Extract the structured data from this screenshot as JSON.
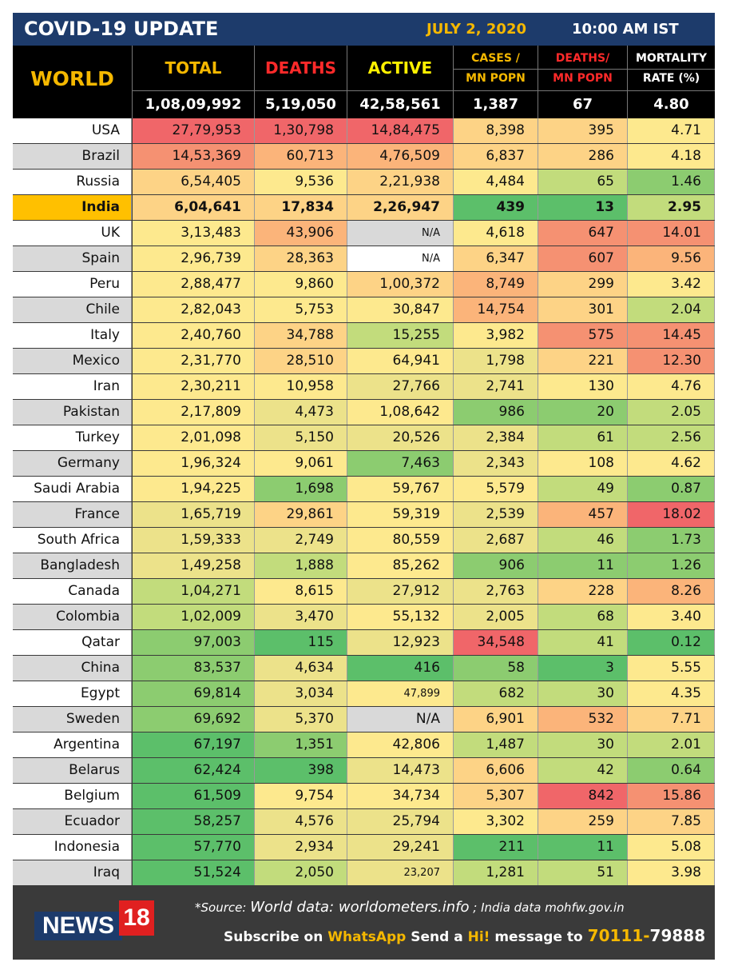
{
  "header": {
    "title": "COVID-19 UPDATE",
    "date": "JULY 2, 2020",
    "time": "10:00 AM IST"
  },
  "columns": {
    "world": "WORLD",
    "total": "TOTAL",
    "deaths": "DEATHS",
    "active": "ACTIVE",
    "cases_mn_1": "CASES /",
    "cases_mn_2": "MN POPN",
    "deaths_mn_1": "DEATHS/",
    "deaths_mn_2": "MN POPN",
    "mortality_1": "MORTALITY",
    "mortality_2": "RATE (%)"
  },
  "world": {
    "total": "1,08,09,992",
    "deaths": "5,19,050",
    "active": "42,58,561",
    "cases_mn": "1,387",
    "deaths_mn": "67",
    "mortality": "4.80"
  },
  "rows": [
    {
      "country": "USA",
      "total": "27,79,953",
      "deaths": "1,30,798",
      "active": "14,84,475",
      "cases_mn": "8,398",
      "deaths_mn": "395",
      "mortality": "4.71"
    },
    {
      "country": "Brazil",
      "total": "14,53,369",
      "deaths": "60,713",
      "active": "4,76,509",
      "cases_mn": "6,837",
      "deaths_mn": "286",
      "mortality": "4.18"
    },
    {
      "country": "Russia",
      "total": "6,54,405",
      "deaths": "9,536",
      "active": "2,21,938",
      "cases_mn": "4,484",
      "deaths_mn": "65",
      "mortality": "1.46"
    },
    {
      "country": "India",
      "total": "6,04,641",
      "deaths": "17,834",
      "active": "2,26,947",
      "cases_mn": "439",
      "deaths_mn": "13",
      "mortality": "2.95"
    },
    {
      "country": "UK",
      "total": "3,13,483",
      "deaths": "43,906",
      "active": "N/A",
      "cases_mn": "4,618",
      "deaths_mn": "647",
      "mortality": "14.01"
    },
    {
      "country": "Spain",
      "total": "2,96,739",
      "deaths": "28,363",
      "active": "N/A",
      "cases_mn": "6,347",
      "deaths_mn": "607",
      "mortality": "9.56"
    },
    {
      "country": "Peru",
      "total": "2,88,477",
      "deaths": "9,860",
      "active": "1,00,372",
      "cases_mn": "8,749",
      "deaths_mn": "299",
      "mortality": "3.42"
    },
    {
      "country": "Chile",
      "total": "2,82,043",
      "deaths": "5,753",
      "active": "30,847",
      "cases_mn": "14,754",
      "deaths_mn": "301",
      "mortality": "2.04"
    },
    {
      "country": "Italy",
      "total": "2,40,760",
      "deaths": "34,788",
      "active": "15,255",
      "cases_mn": "3,982",
      "deaths_mn": "575",
      "mortality": "14.45"
    },
    {
      "country": "Mexico",
      "total": "2,31,770",
      "deaths": "28,510",
      "active": "64,941",
      "cases_mn": "1,798",
      "deaths_mn": "221",
      "mortality": "12.30"
    },
    {
      "country": "Iran",
      "total": "2,30,211",
      "deaths": "10,958",
      "active": "27,766",
      "cases_mn": "2,741",
      "deaths_mn": "130",
      "mortality": "4.76"
    },
    {
      "country": "Pakistan",
      "total": "2,17,809",
      "deaths": "4,473",
      "active": "1,08,642",
      "cases_mn": "986",
      "deaths_mn": "20",
      "mortality": "2.05"
    },
    {
      "country": "Turkey",
      "total": "2,01,098",
      "deaths": "5,150",
      "active": "20,526",
      "cases_mn": "2,384",
      "deaths_mn": "61",
      "mortality": "2.56"
    },
    {
      "country": "Germany",
      "total": "1,96,324",
      "deaths": "9,061",
      "active": "7,463",
      "cases_mn": "2,343",
      "deaths_mn": "108",
      "mortality": "4.62"
    },
    {
      "country": "Saudi Arabia",
      "total": "1,94,225",
      "deaths": "1,698",
      "active": "59,767",
      "cases_mn": "5,579",
      "deaths_mn": "49",
      "mortality": "0.87"
    },
    {
      "country": "France",
      "total": "1,65,719",
      "deaths": "29,861",
      "active": "59,319",
      "cases_mn": "2,539",
      "deaths_mn": "457",
      "mortality": "18.02"
    },
    {
      "country": "South Africa",
      "total": "1,59,333",
      "deaths": "2,749",
      "active": "80,559",
      "cases_mn": "2,687",
      "deaths_mn": "46",
      "mortality": "1.73"
    },
    {
      "country": "Bangladesh",
      "total": "1,49,258",
      "deaths": "1,888",
      "active": "85,262",
      "cases_mn": "906",
      "deaths_mn": "11",
      "mortality": "1.26"
    },
    {
      "country": "Canada",
      "total": "1,04,271",
      "deaths": "8,615",
      "active": "27,912",
      "cases_mn": "2,763",
      "deaths_mn": "228",
      "mortality": "8.26"
    },
    {
      "country": "Colombia",
      "total": "1,02,009",
      "deaths": "3,470",
      "active": "55,132",
      "cases_mn": "2,005",
      "deaths_mn": "68",
      "mortality": "3.40"
    },
    {
      "country": "Qatar",
      "total": "97,003",
      "deaths": "115",
      "active": "12,923",
      "cases_mn": "34,548",
      "deaths_mn": "41",
      "mortality": "0.12"
    },
    {
      "country": "China",
      "total": "83,537",
      "deaths": "4,634",
      "active": "416",
      "cases_mn": "58",
      "deaths_mn": "3",
      "mortality": "5.55"
    },
    {
      "country": "Egypt",
      "total": "69,814",
      "deaths": "3,034",
      "active": "47,899",
      "cases_mn": "682",
      "deaths_mn": "30",
      "mortality": "4.35"
    },
    {
      "country": "Sweden",
      "total": "69,692",
      "deaths": "5,370",
      "active": "N/A",
      "cases_mn": "6,901",
      "deaths_mn": "532",
      "mortality": "7.71"
    },
    {
      "country": "Argentina",
      "total": "67,197",
      "deaths": "1,351",
      "active": "42,806",
      "cases_mn": "1,487",
      "deaths_mn": "30",
      "mortality": "2.01"
    },
    {
      "country": "Belarus",
      "total": "62,424",
      "deaths": "398",
      "active": "14,473",
      "cases_mn": "6,606",
      "deaths_mn": "42",
      "mortality": "0.64"
    },
    {
      "country": "Belgium",
      "total": "61,509",
      "deaths": "9,754",
      "active": "34,734",
      "cases_mn": "5,307",
      "deaths_mn": "842",
      "mortality": "15.86"
    },
    {
      "country": "Ecuador",
      "total": "58,257",
      "deaths": "4,576",
      "active": "25,794",
      "cases_mn": "3,302",
      "deaths_mn": "259",
      "mortality": "7.85"
    },
    {
      "country": "Indonesia",
      "total": "57,770",
      "deaths": "2,934",
      "active": "29,241",
      "cases_mn": "211",
      "deaths_mn": "11",
      "mortality": "5.08"
    },
    {
      "country": "Iraq",
      "total": "51,524",
      "deaths": "2,050",
      "active": "23,207",
      "cases_mn": "1,281",
      "deaths_mn": "51",
      "mortality": "3.98"
    }
  ],
  "colors": {
    "header_bar": "#1d3b6b",
    "gold": "#f5b800",
    "red_label": "#ff2a2a",
    "yellow_label": "#fff100",
    "india_row": "#ffc000",
    "scale": [
      "#5cbf6a",
      "#8ccc70",
      "#c2dc7c",
      "#ece28a",
      "#fde98e",
      "#fdd386",
      "#fbb47a",
      "#f59172",
      "#f06669"
    ]
  },
  "footer": {
    "logo_news": "NEWS",
    "logo_18": "18",
    "source_label": "*Source:",
    "source_world": "World data: worldometers.info",
    "source_sep": ";",
    "source_india": "India data mohfw.gov.in",
    "sub_a": "Subscribe on",
    "sub_b": "WhatsApp",
    "sub_c": "Send a",
    "sub_d": "Hi!",
    "sub_e": "message to",
    "phone_a": "70111-",
    "phone_b": "79888"
  },
  "scale_levels": [
    [
      8,
      8,
      8,
      5,
      5,
      4
    ],
    [
      7,
      6,
      6,
      5,
      5,
      4
    ],
    [
      5,
      4,
      5,
      4,
      2,
      1
    ],
    [
      5,
      5,
      5,
      0,
      0,
      2
    ],
    [
      4,
      6,
      -1,
      4,
      7,
      7
    ],
    [
      4,
      5,
      -2,
      5,
      7,
      6
    ],
    [
      4,
      4,
      5,
      6,
      5,
      4
    ],
    [
      4,
      4,
      4,
      6,
      5,
      2
    ],
    [
      4,
      5,
      2,
      4,
      7,
      7
    ],
    [
      4,
      5,
      4,
      3,
      5,
      7
    ],
    [
      4,
      4,
      3,
      3,
      4,
      4
    ],
    [
      4,
      3,
      4,
      1,
      1,
      2
    ],
    [
      4,
      3,
      3,
      3,
      2,
      2
    ],
    [
      4,
      4,
      1,
      3,
      4,
      4
    ],
    [
      4,
      1,
      4,
      4,
      2,
      1
    ],
    [
      3,
      5,
      4,
      3,
      6,
      8
    ],
    [
      3,
      3,
      4,
      3,
      2,
      1
    ],
    [
      3,
      2,
      4,
      1,
      1,
      1
    ],
    [
      2,
      4,
      3,
      3,
      5,
      6
    ],
    [
      2,
      3,
      4,
      3,
      2,
      4
    ],
    [
      1,
      0,
      3,
      8,
      2,
      0
    ],
    [
      1,
      3,
      0,
      1,
      0,
      4
    ],
    [
      1,
      3,
      4,
      2,
      2,
      4
    ],
    [
      1,
      3,
      -1,
      5,
      6,
      5
    ],
    [
      0,
      1,
      4,
      2,
      2,
      2
    ],
    [
      0,
      0,
      3,
      5,
      2,
      1
    ],
    [
      0,
      4,
      4,
      5,
      8,
      7
    ],
    [
      0,
      3,
      3,
      4,
      5,
      5
    ],
    [
      0,
      3,
      3,
      0,
      0,
      4
    ],
    [
      0,
      2,
      3,
      2,
      2,
      4
    ]
  ]
}
